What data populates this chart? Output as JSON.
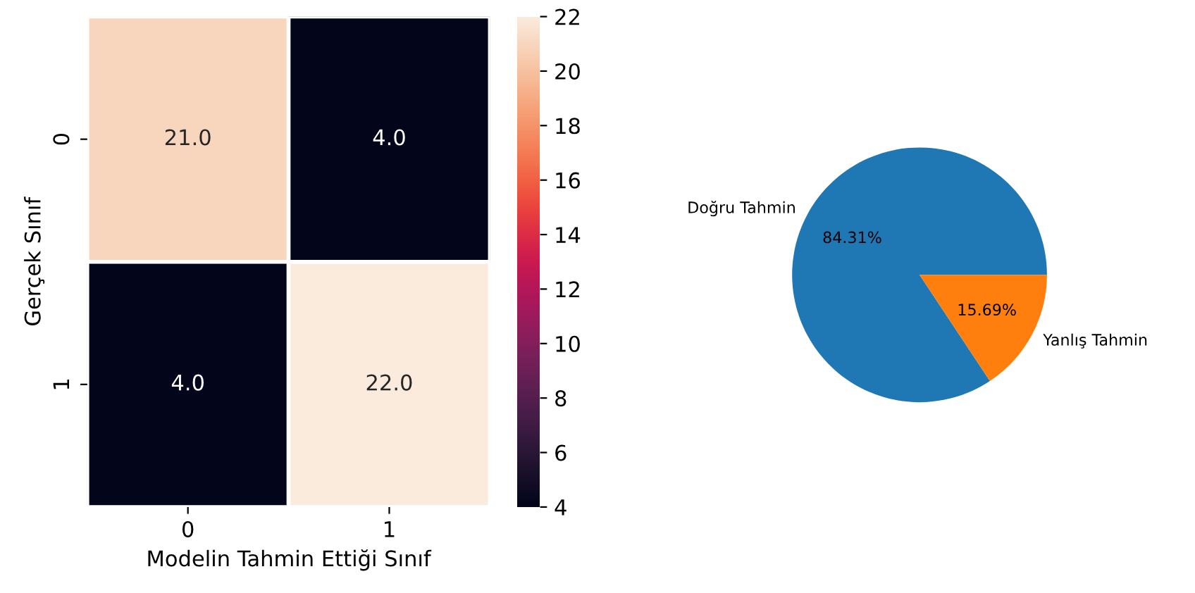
{
  "chart_data": [
    {
      "type": "heatmap",
      "xlabel": "Modelin Tahmin Ettiği Sınıf",
      "ylabel": "Gerçek Sınıf",
      "categories": [
        "0",
        "1"
      ],
      "y_categories": [
        "0",
        "1"
      ],
      "cells": [
        [
          21,
          4
        ],
        [
          4,
          22
        ]
      ],
      "cell_labels": [
        [
          "21.0",
          "4.0"
        ],
        [
          "4.0",
          "22.0"
        ]
      ],
      "clim": [
        4,
        22
      ],
      "cticks": [
        4,
        6,
        8,
        10,
        12,
        14,
        16,
        18,
        20,
        22
      ]
    },
    {
      "type": "pie",
      "categories": [
        "Doğru Tahmin",
        "Yanlış Tahmin"
      ],
      "values": [
        84.31,
        15.69
      ],
      "colors": [
        "#1f77b4",
        "#ff7f0e"
      ],
      "value_labels": [
        "84.31%",
        "15.69%"
      ]
    }
  ]
}
